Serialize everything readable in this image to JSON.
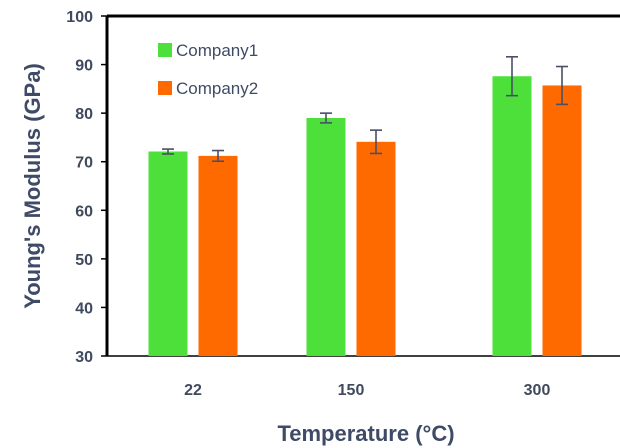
{
  "chart_data": {
    "type": "bar",
    "title": "",
    "xlabel": "Temperature (°C)",
    "ylabel": "Young's Modulus (GPa)",
    "categories": [
      "22",
      "150",
      "300"
    ],
    "ylim": [
      30,
      100
    ],
    "yticks": [
      "30",
      "40",
      "50",
      "60",
      "70",
      "80",
      "90",
      "100"
    ],
    "grid": false,
    "legend_position": "top-left",
    "series": [
      {
        "name": "Company1",
        "color": "#4de03a",
        "values": [
          72.1,
          79.0,
          87.6
        ],
        "errors": [
          0.5,
          1.0,
          4.0
        ]
      },
      {
        "name": "Company2",
        "color": "#ff6a00",
        "values": [
          71.2,
          74.1,
          85.7
        ],
        "errors": [
          1.1,
          2.4,
          3.9
        ]
      }
    ],
    "error_bar_color": "#4a4f66"
  }
}
